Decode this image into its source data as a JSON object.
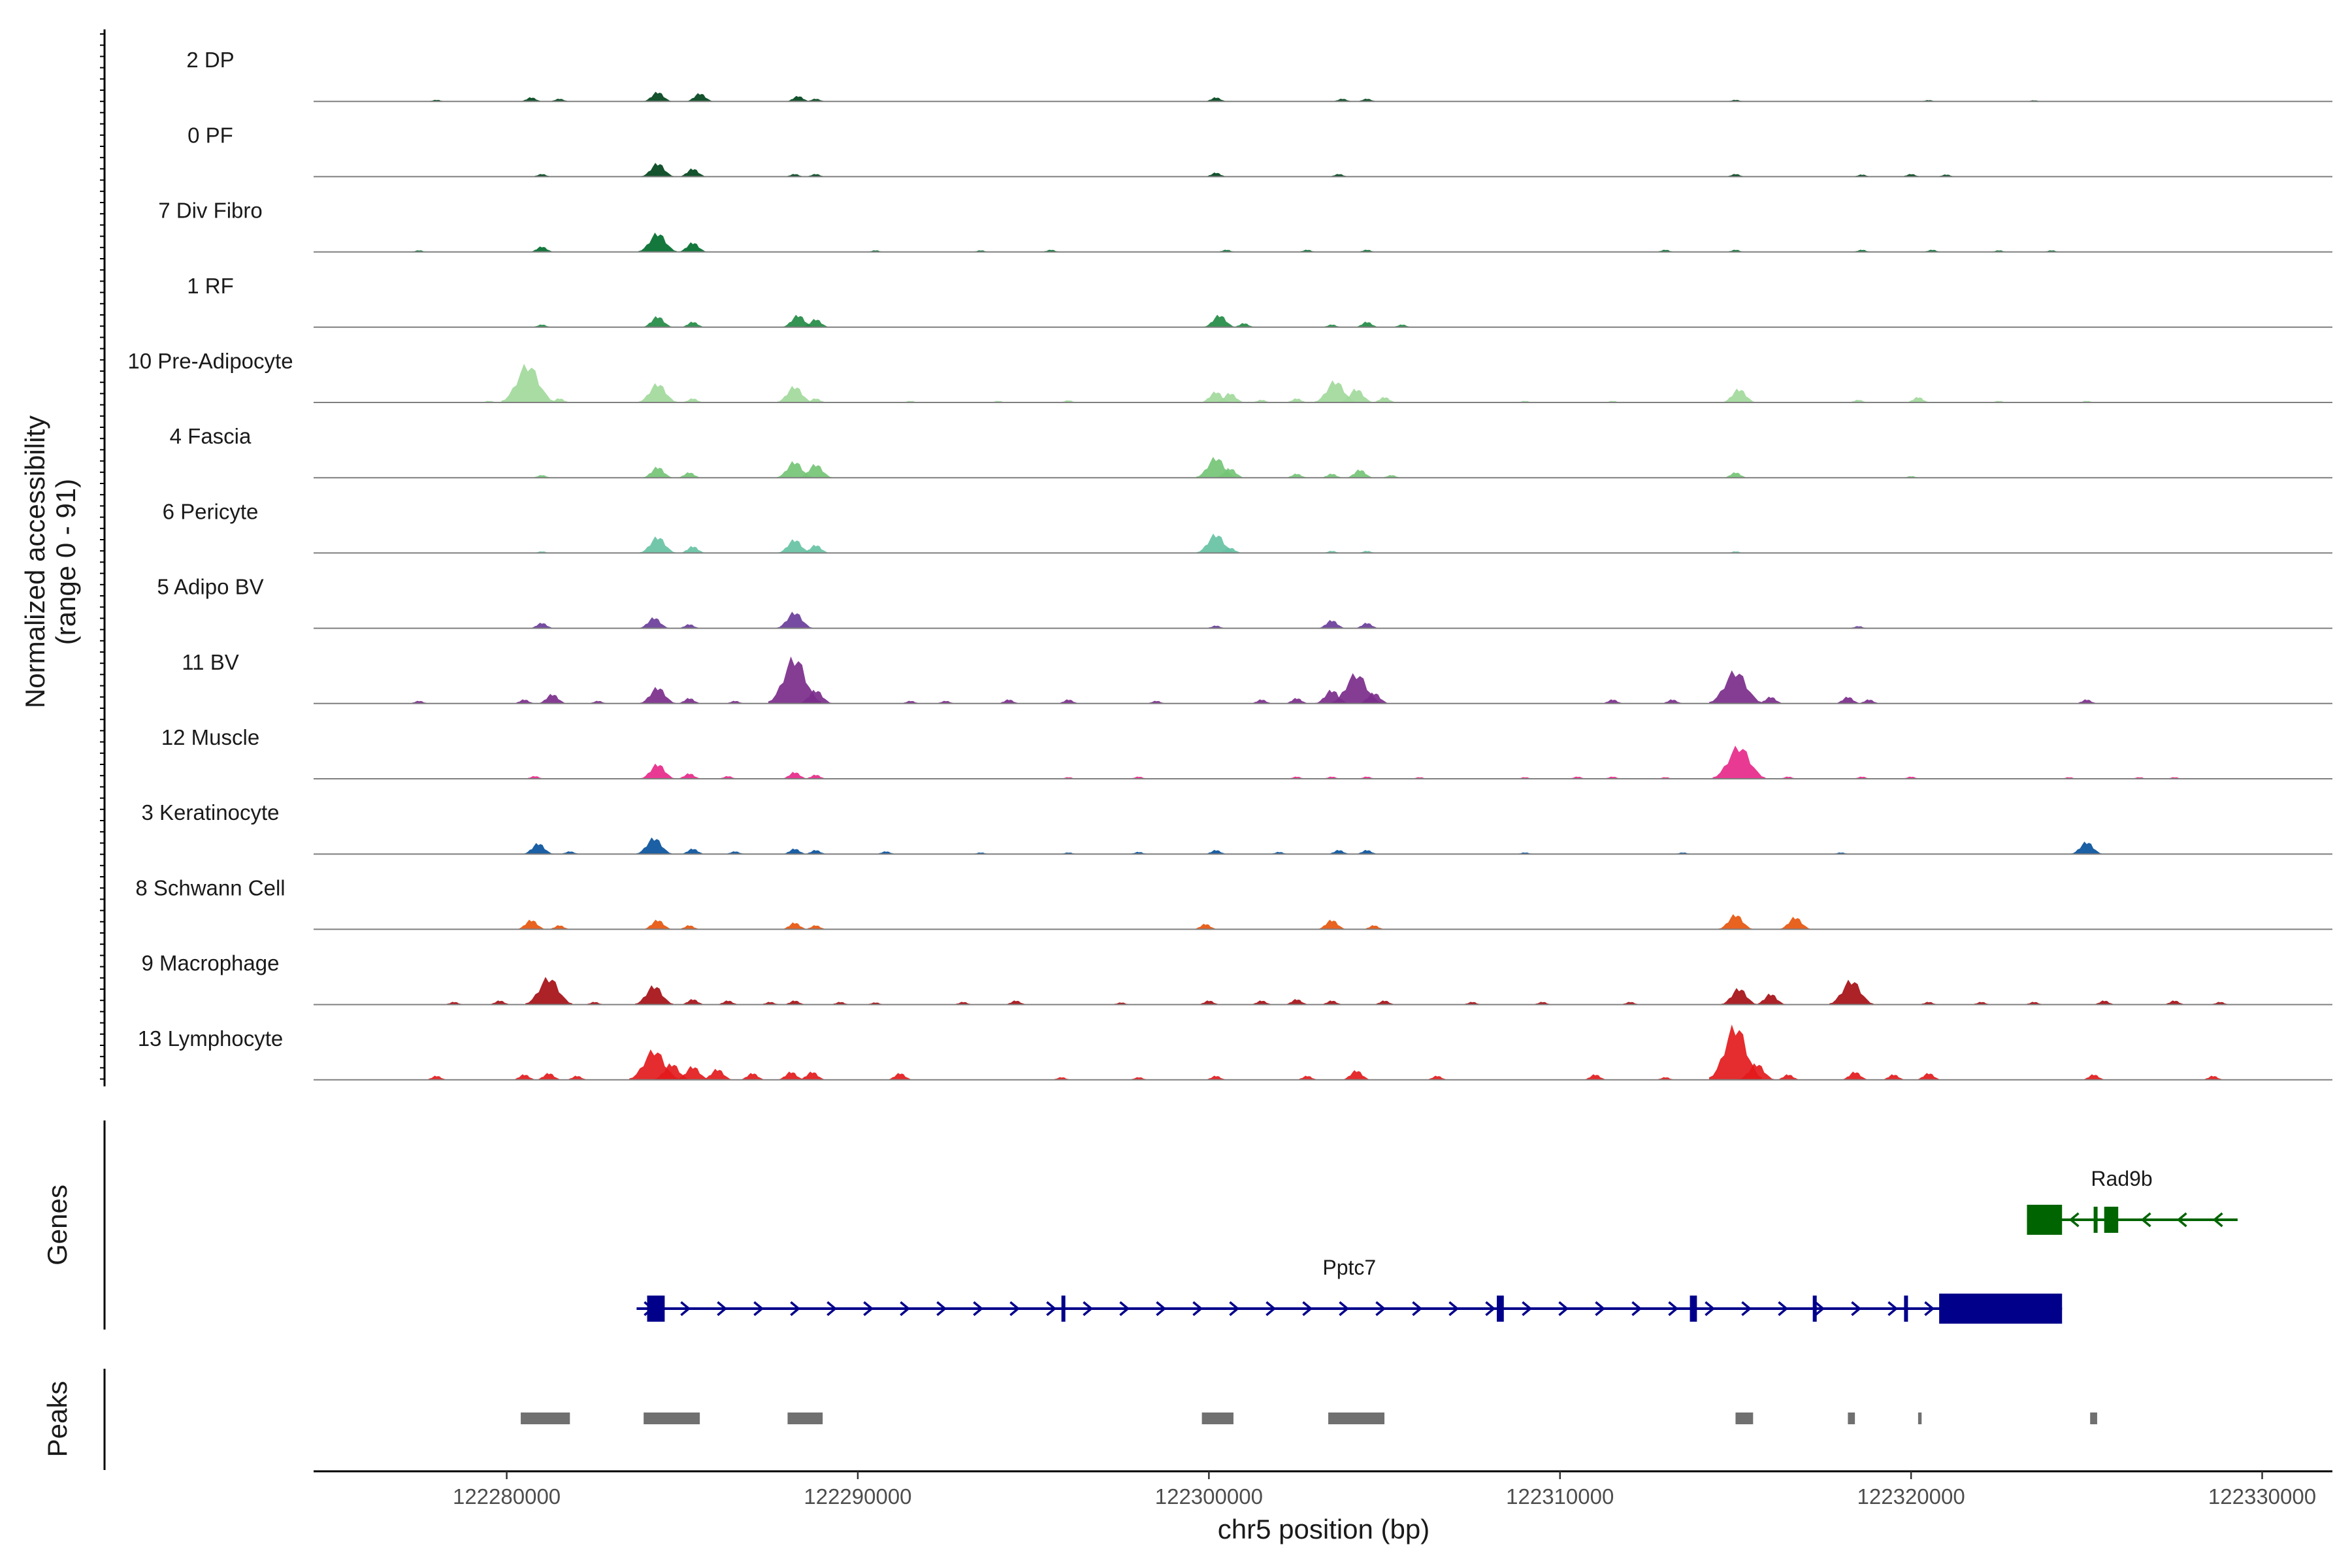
{
  "chart_data": {
    "type": "genome-track",
    "title": "",
    "xlabel": "chr5 position (bp)",
    "xlim": [
      122274500,
      122332000
    ],
    "x_ticks": [
      {
        "value": 122280000,
        "label": "122280000"
      },
      {
        "value": 122290000,
        "label": "122290000"
      },
      {
        "value": 122300000,
        "label": "122300000"
      },
      {
        "value": 122310000,
        "label": "122310000"
      },
      {
        "value": 122320000,
        "label": "122320000"
      },
      {
        "value": 122330000,
        "label": "122330000"
      }
    ],
    "coverage_ylabel": [
      "Normalized accessibility",
      "(range 0 - 91)"
    ],
    "coverage_range": [
      0,
      91
    ],
    "genes_label": "Genes",
    "peaks_label": "Peaks",
    "tracks": [
      {
        "name": "2 DP",
        "color": "#00441b",
        "peaks": [
          [
            122278000,
            0.6
          ],
          [
            122280700,
            1.5
          ],
          [
            122281500,
            1.0
          ],
          [
            122284300,
            3.5
          ],
          [
            122285500,
            3.0
          ],
          [
            122288300,
            2.0
          ],
          [
            122288800,
            1.0
          ],
          [
            122300200,
            1.5
          ],
          [
            122303800,
            1.0
          ],
          [
            122304500,
            1.0
          ],
          [
            122315000,
            0.6
          ],
          [
            122320500,
            0.5
          ],
          [
            122323500,
            0.4
          ]
        ]
      },
      {
        "name": "0 PF",
        "color": "#00441b",
        "peaks": [
          [
            122281000,
            1.0
          ],
          [
            122284300,
            5.0
          ],
          [
            122285300,
            3.0
          ],
          [
            122288200,
            1.0
          ],
          [
            122288800,
            1.0
          ],
          [
            122300200,
            1.5
          ],
          [
            122303700,
            1.0
          ],
          [
            122315000,
            1.0
          ],
          [
            122318600,
            0.8
          ],
          [
            122320000,
            1.0
          ],
          [
            122321000,
            0.8
          ]
        ]
      },
      {
        "name": "7 Div Fibro",
        "color": "#006d2c",
        "peaks": [
          [
            122277500,
            0.6
          ],
          [
            122281000,
            2.0
          ],
          [
            122284300,
            7.0
          ],
          [
            122285300,
            3.5
          ],
          [
            122290500,
            0.6
          ],
          [
            122293500,
            0.6
          ],
          [
            122295500,
            0.8
          ],
          [
            122300500,
            0.8
          ],
          [
            122302800,
            0.8
          ],
          [
            122304500,
            0.8
          ],
          [
            122313000,
            0.8
          ],
          [
            122315000,
            0.8
          ],
          [
            122318600,
            0.8
          ],
          [
            122320600,
            0.8
          ],
          [
            122322500,
            0.6
          ],
          [
            122324000,
            0.6
          ]
        ]
      },
      {
        "name": "1 RF",
        "color": "#238b45",
        "peaks": [
          [
            122281000,
            1.0
          ],
          [
            122284300,
            4.0
          ],
          [
            122285300,
            2.0
          ],
          [
            122288300,
            4.5
          ],
          [
            122288800,
            3.0
          ],
          [
            122300300,
            4.5
          ],
          [
            122301000,
            1.5
          ],
          [
            122303500,
            1.0
          ],
          [
            122304500,
            2.0
          ],
          [
            122305500,
            1.0
          ]
        ]
      },
      {
        "name": "10 Pre-Adipocyte",
        "color": "#a1d99b",
        "peaks": [
          [
            122279500,
            0.6
          ],
          [
            122280600,
            14.0
          ],
          [
            122281500,
            1.5
          ],
          [
            122284300,
            7.0
          ],
          [
            122285300,
            1.5
          ],
          [
            122288200,
            6.0
          ],
          [
            122288800,
            1.5
          ],
          [
            122291500,
            0.6
          ],
          [
            122294000,
            0.6
          ],
          [
            122296000,
            0.8
          ],
          [
            122300200,
            4.0
          ],
          [
            122300600,
            3.5
          ],
          [
            122301500,
            1.0
          ],
          [
            122302500,
            1.5
          ],
          [
            122303600,
            8.0
          ],
          [
            122304200,
            5.0
          ],
          [
            122305000,
            2.0
          ],
          [
            122309000,
            0.6
          ],
          [
            122311500,
            0.6
          ],
          [
            122315100,
            5.0
          ],
          [
            122318500,
            1.0
          ],
          [
            122320200,
            2.0
          ],
          [
            122322500,
            0.6
          ],
          [
            122325000,
            0.6
          ]
        ]
      },
      {
        "name": "4 Fascia",
        "color": "#74c476",
        "peaks": [
          [
            122281000,
            1.0
          ],
          [
            122284300,
            4.0
          ],
          [
            122285200,
            2.0
          ],
          [
            122288200,
            6.0
          ],
          [
            122288800,
            5.0
          ],
          [
            122300200,
            7.5
          ],
          [
            122300600,
            3.5
          ],
          [
            122302500,
            1.5
          ],
          [
            122303500,
            1.5
          ],
          [
            122304300,
            3.0
          ],
          [
            122305200,
            1.0
          ],
          [
            122315000,
            2.0
          ],
          [
            122320000,
            0.6
          ]
        ]
      },
      {
        "name": "6 Pericyte",
        "color": "#66c2a4",
        "peaks": [
          [
            122281000,
            0.6
          ],
          [
            122284300,
            6.0
          ],
          [
            122285300,
            2.5
          ],
          [
            122288200,
            5.0
          ],
          [
            122288800,
            3.0
          ],
          [
            122300200,
            7.0
          ],
          [
            122300600,
            2.0
          ],
          [
            122303500,
            0.8
          ],
          [
            122304500,
            0.8
          ],
          [
            122315000,
            0.6
          ]
        ]
      },
      {
        "name": "5 Adipo BV",
        "color": "#6a3d9a",
        "peaks": [
          [
            122281000,
            2.0
          ],
          [
            122284200,
            4.0
          ],
          [
            122285200,
            1.5
          ],
          [
            122288200,
            6.0
          ],
          [
            122300200,
            1.0
          ],
          [
            122303500,
            3.0
          ],
          [
            122304500,
            2.0
          ],
          [
            122318500,
            0.8
          ]
        ]
      },
      {
        "name": "11 BV",
        "color": "#7b2d8b",
        "peaks": [
          [
            122277500,
            1.0
          ],
          [
            122280500,
            1.5
          ],
          [
            122281300,
            3.5
          ],
          [
            122282600,
            1.0
          ],
          [
            122284300,
            6.0
          ],
          [
            122285200,
            2.0
          ],
          [
            122286500,
            1.0
          ],
          [
            122288200,
            17.0
          ],
          [
            122288800,
            5.0
          ],
          [
            122291500,
            1.0
          ],
          [
            122292500,
            1.0
          ],
          [
            122294300,
            1.5
          ],
          [
            122296000,
            1.5
          ],
          [
            122298500,
            1.0
          ],
          [
            122301500,
            1.5
          ],
          [
            122302500,
            2.0
          ],
          [
            122303500,
            5.0
          ],
          [
            122304200,
            11.0
          ],
          [
            122304700,
            4.0
          ],
          [
            122311500,
            1.5
          ],
          [
            122313200,
            1.5
          ],
          [
            122315000,
            12.0
          ],
          [
            122316000,
            2.5
          ],
          [
            122318200,
            2.5
          ],
          [
            122318800,
            1.5
          ],
          [
            122325000,
            1.5
          ]
        ]
      },
      {
        "name": "12 Muscle",
        "color": "#e7298a",
        "peaks": [
          [
            122280800,
            1.0
          ],
          [
            122284300,
            5.5
          ],
          [
            122285200,
            2.0
          ],
          [
            122286300,
            1.0
          ],
          [
            122288200,
            2.5
          ],
          [
            122288800,
            1.5
          ],
          [
            122296000,
            0.6
          ],
          [
            122298000,
            0.8
          ],
          [
            122302500,
            0.8
          ],
          [
            122303500,
            0.8
          ],
          [
            122304500,
            0.8
          ],
          [
            122306000,
            0.6
          ],
          [
            122309000,
            0.6
          ],
          [
            122310500,
            0.8
          ],
          [
            122311500,
            0.8
          ],
          [
            122313000,
            0.6
          ],
          [
            122315100,
            12.0
          ],
          [
            122316500,
            0.8
          ],
          [
            122318600,
            0.8
          ],
          [
            122320000,
            0.8
          ],
          [
            122324500,
            0.6
          ],
          [
            122326500,
            0.6
          ],
          [
            122327500,
            0.6
          ]
        ]
      },
      {
        "name": "3 Keratinocyte",
        "color": "#08519c",
        "peaks": [
          [
            122280900,
            4.0
          ],
          [
            122281800,
            1.0
          ],
          [
            122284200,
            6.0
          ],
          [
            122285300,
            2.0
          ],
          [
            122286500,
            1.0
          ],
          [
            122288200,
            2.0
          ],
          [
            122288800,
            1.5
          ],
          [
            122290800,
            1.0
          ],
          [
            122293500,
            0.6
          ],
          [
            122296000,
            0.6
          ],
          [
            122298000,
            0.8
          ],
          [
            122300200,
            1.5
          ],
          [
            122302000,
            0.8
          ],
          [
            122303700,
            1.5
          ],
          [
            122304500,
            1.5
          ],
          [
            122309000,
            0.6
          ],
          [
            122313500,
            0.6
          ],
          [
            122318000,
            0.6
          ],
          [
            122325000,
            4.5
          ]
        ]
      },
      {
        "name": "8 Schwann Cell",
        "color": "#e6550d",
        "peaks": [
          [
            122280700,
            3.5
          ],
          [
            122281500,
            1.5
          ],
          [
            122284300,
            3.5
          ],
          [
            122285200,
            1.5
          ],
          [
            122288200,
            2.5
          ],
          [
            122288800,
            1.5
          ],
          [
            122299900,
            2.0
          ],
          [
            122303500,
            3.5
          ],
          [
            122304700,
            1.5
          ],
          [
            122315000,
            5.5
          ],
          [
            122316700,
            4.5
          ]
        ]
      },
      {
        "name": "9 Macrophage",
        "color": "#a50f15",
        "peaks": [
          [
            122278500,
            1.0
          ],
          [
            122279800,
            1.5
          ],
          [
            122281200,
            10.0
          ],
          [
            122282500,
            1.0
          ],
          [
            122284200,
            7.0
          ],
          [
            122285300,
            2.0
          ],
          [
            122286300,
            1.5
          ],
          [
            122287500,
            1.0
          ],
          [
            122288200,
            1.5
          ],
          [
            122289500,
            1.0
          ],
          [
            122290500,
            0.8
          ],
          [
            122293000,
            1.0
          ],
          [
            122294500,
            1.5
          ],
          [
            122297500,
            0.8
          ],
          [
            122300000,
            1.5
          ],
          [
            122301500,
            1.5
          ],
          [
            122302500,
            2.0
          ],
          [
            122303500,
            1.5
          ],
          [
            122305000,
            1.5
          ],
          [
            122307500,
            1.0
          ],
          [
            122309500,
            1.0
          ],
          [
            122312000,
            1.0
          ],
          [
            122315100,
            6.0
          ],
          [
            122316000,
            4.0
          ],
          [
            122318300,
            9.0
          ],
          [
            122320500,
            1.0
          ],
          [
            122322000,
            1.0
          ],
          [
            122323500,
            1.0
          ],
          [
            122325500,
            1.5
          ],
          [
            122327500,
            1.5
          ],
          [
            122328800,
            1.0
          ]
        ]
      },
      {
        "name": "13 Lymphocyte",
        "color": "#e31a1c",
        "peaks": [
          [
            122278000,
            1.5
          ],
          [
            122280500,
            2.0
          ],
          [
            122281200,
            2.5
          ],
          [
            122282000,
            1.5
          ],
          [
            122284200,
            11.0
          ],
          [
            122284700,
            6.0
          ],
          [
            122285300,
            5.0
          ],
          [
            122286000,
            4.0
          ],
          [
            122287000,
            2.5
          ],
          [
            122288100,
            3.0
          ],
          [
            122288700,
            3.0
          ],
          [
            122291200,
            2.5
          ],
          [
            122295800,
            1.0
          ],
          [
            122298000,
            1.0
          ],
          [
            122300200,
            1.5
          ],
          [
            122302800,
            1.5
          ],
          [
            122304200,
            3.5
          ],
          [
            122306500,
            1.5
          ],
          [
            122311000,
            2.0
          ],
          [
            122313000,
            1.0
          ],
          [
            122315000,
            20.0
          ],
          [
            122315600,
            6.0
          ],
          [
            122316500,
            2.0
          ],
          [
            122318400,
            3.0
          ],
          [
            122319500,
            2.0
          ],
          [
            122320500,
            2.5
          ],
          [
            122325200,
            2.0
          ],
          [
            122328600,
            1.5
          ]
        ]
      }
    ],
    "genes": [
      {
        "name": "Pptc7",
        "color": "#00008b",
        "strand": "+",
        "start": 122283700,
        "end": 122324300,
        "exons": [
          [
            122284000,
            122284500
          ],
          [
            122295800,
            122295900
          ],
          [
            122308200,
            122308400
          ],
          [
            122313700,
            122313900
          ],
          [
            122317200,
            122317300
          ],
          [
            122319800,
            122319900
          ],
          [
            122320800,
            122324300
          ]
        ],
        "label_x": 122304000
      },
      {
        "name": "Rad9b",
        "color": "#006400",
        "strand": "-",
        "start": 122323300,
        "end": 122329300,
        "exons": [
          [
            122323300,
            122324300
          ],
          [
            122325200,
            122325300
          ],
          [
            122325500,
            122325900
          ]
        ],
        "label_x": 122326000
      }
    ],
    "peak_regions": [
      [
        122280400,
        122281800
      ],
      [
        122283900,
        122285500
      ],
      [
        122288000,
        122289000
      ],
      [
        122299800,
        122300700
      ],
      [
        122303400,
        122305000
      ],
      [
        122315000,
        122315500
      ],
      [
        122318200,
        122318400
      ],
      [
        122320200,
        122320300
      ],
      [
        122325100,
        122325300
      ]
    ]
  }
}
